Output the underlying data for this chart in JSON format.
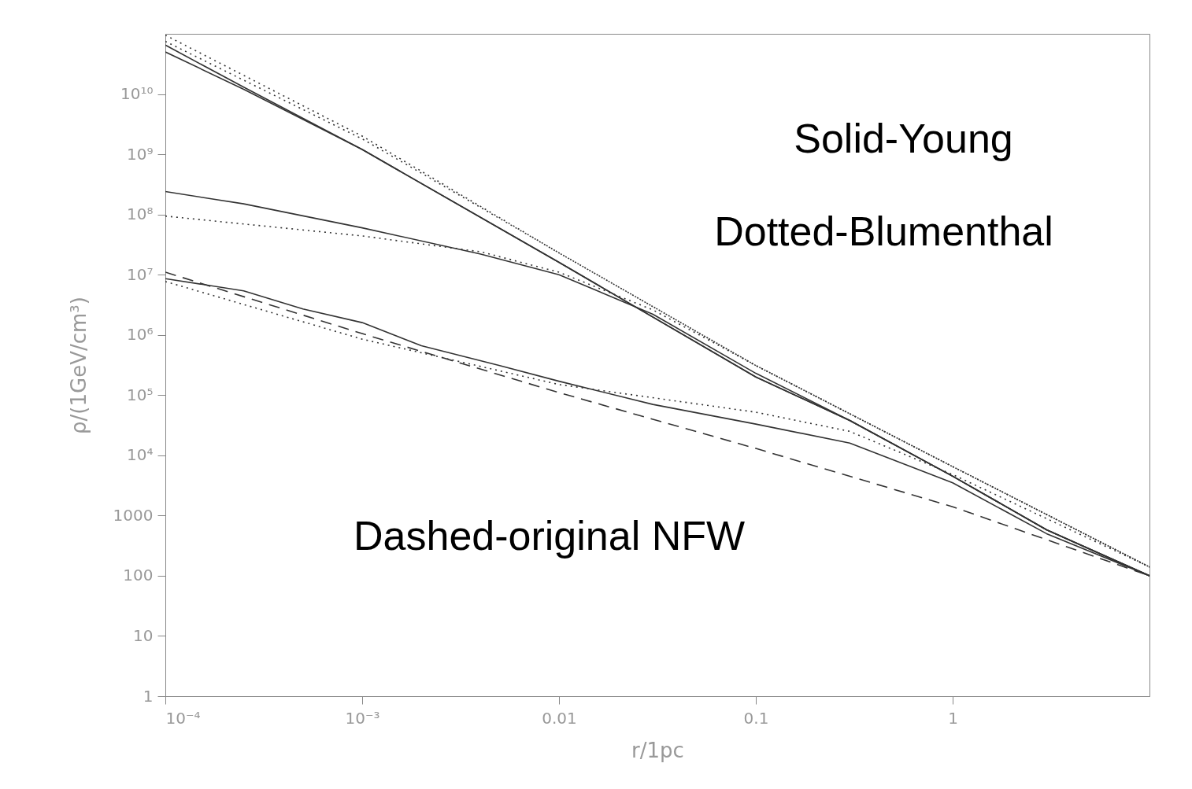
{
  "chart_data": {
    "type": "line",
    "xlabel": "r/1pc",
    "ylabel": "ρ/(1GeV/cm³)",
    "log": "xy",
    "grid": false,
    "xlim": [
      0.0001,
      10
    ],
    "ylim": [
      1,
      100000000000
    ],
    "xticks": [
      {
        "value": 0.0001,
        "label": "10⁻⁴"
      },
      {
        "value": 0.001,
        "label": "10⁻³"
      },
      0.01,
      0.1,
      1
    ],
    "yticks": [
      1,
      10,
      100,
      1000,
      {
        "value": 10000,
        "label": "10⁴"
      },
      {
        "value": 100000,
        "label": "10⁵"
      },
      {
        "value": 1000000,
        "label": "10⁶"
      },
      {
        "value": 10000000,
        "label": "10⁷"
      },
      {
        "value": 100000000,
        "label": "10⁸"
      },
      {
        "value": 1000000000,
        "label": "10⁹"
      },
      {
        "value": 10000000000,
        "label": "10¹⁰"
      }
    ],
    "annotations": [
      "Solid-Young",
      "Dotted-Blumenthal",
      "Dashed-original NFW"
    ],
    "series": [
      {
        "color": "#333333",
        "line_style": "solid",
        "x": [
          0.0001,
          0.00025,
          0.001,
          0.01,
          0.1,
          0.3,
          1,
          3,
          10
        ],
        "values": [
          65000000000,
          13000000000,
          1200000000,
          16000000,
          200000,
          38000,
          4500,
          580,
          100
        ]
      },
      {
        "color": "#333333",
        "line_style": "solid",
        "x": [
          0.0001,
          0.00025,
          0.001,
          0.01,
          0.1,
          0.3,
          1,
          3,
          10
        ],
        "values": [
          50000000000,
          12000000000,
          1200000000,
          16000000,
          200000,
          38000,
          4500,
          580,
          100
        ]
      },
      {
        "color": "#333333",
        "line_style": "solid",
        "x": [
          0.0001,
          0.00025,
          0.001,
          0.004,
          0.01,
          0.03,
          0.1,
          0.3,
          1,
          3,
          10
        ],
        "values": [
          240000000,
          150000000,
          60000000,
          22000000,
          10000000,
          2200000,
          230000,
          38000,
          4500,
          580,
          100
        ]
      },
      {
        "color": "#333333",
        "line_style": "solid",
        "x": [
          0.0001,
          0.00025,
          0.0005,
          0.001,
          0.002,
          0.005,
          0.01,
          0.03,
          0.1,
          0.3,
          1,
          3,
          10
        ],
        "values": [
          8600000,
          5400000,
          2700000,
          1600000,
          660000,
          310000,
          170000,
          70000,
          33000,
          16000,
          3500,
          500,
          100
        ]
      },
      {
        "color": "#333333",
        "line_style": "dotted",
        "x": [
          0.0001,
          0.001,
          0.01,
          0.1,
          1,
          10
        ],
        "values": [
          95000000000,
          2000000000,
          23000000,
          310000,
          6500,
          140
        ]
      },
      {
        "color": "#333333",
        "line_style": "dotted",
        "x": [
          0.0001,
          0.001,
          0.01,
          0.1,
          1,
          10
        ],
        "values": [
          75000000000,
          1800000000,
          23000000,
          310000,
          6500,
          140
        ]
      },
      {
        "color": "#333333",
        "line_style": "dotted",
        "x": [
          0.0001,
          0.001,
          0.004,
          0.01,
          0.03,
          0.1,
          1,
          10
        ],
        "values": [
          94000000,
          44000000,
          24000000,
          11000000,
          2600000,
          310000,
          6500,
          140
        ]
      },
      {
        "color": "#333333",
        "line_style": "dotted",
        "x": [
          0.0001,
          0.001,
          0.01,
          0.1,
          0.3,
          1,
          10
        ],
        "values": [
          7700000,
          850000,
          150000,
          52000,
          25000,
          4800,
          140
        ]
      },
      {
        "color": "#333333",
        "line_style": "dashed",
        "x": [
          0.0001,
          0.001,
          0.01,
          0.1,
          1,
          10
        ],
        "values": [
          11000000,
          1050000,
          110000,
          13000,
          1400,
          100
        ]
      }
    ]
  }
}
